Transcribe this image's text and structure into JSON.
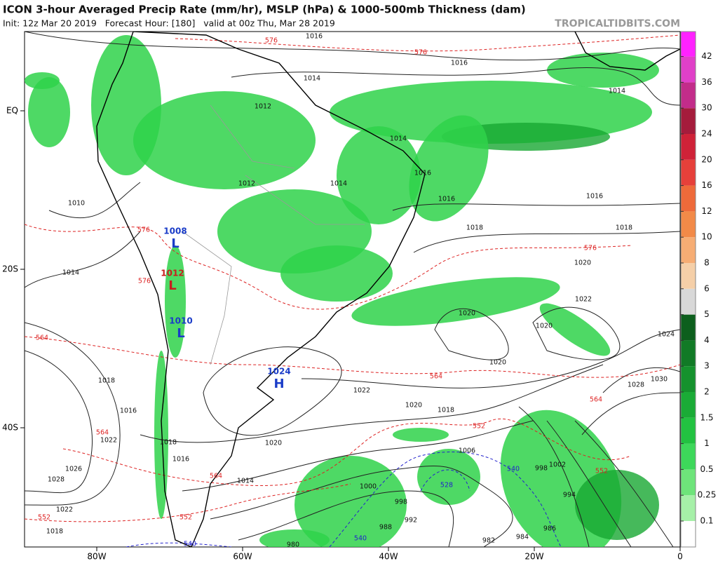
{
  "header": {
    "title": "ICON 3-hour Averaged Precip Rate (mm/hr), MSLP (hPa) & 1000-500mb Thickness (dam)",
    "subtitle": "Init: 12z Mar 20 2019   Forecast Hour: [180]   valid at 00z Thu, Mar 28 2019",
    "site": "TROPICALTIDBITS.COM"
  },
  "colorbar": {
    "labels": [
      0.1,
      0.25,
      0.5,
      1,
      1.5,
      2,
      3,
      4,
      5,
      6,
      8,
      10,
      12,
      16,
      20,
      24,
      30,
      36,
      42
    ],
    "colors": [
      "#ffffff",
      "#a6f0a8",
      "#6ee47a",
      "#3dd85a",
      "#22c241",
      "#1aab36",
      "#15922d",
      "#117a26",
      "#0d5f1d",
      "#d8d8d8",
      "#f5cfa8",
      "#f6ad74",
      "#f28a48",
      "#ee6a3a",
      "#e6403a",
      "#cf2238",
      "#a51c3c",
      "#c22c8a",
      "#e040c8",
      "#ff22ff"
    ]
  },
  "axes": {
    "lon_labels": [
      "80W",
      "60W",
      "40W",
      "20W",
      0
    ],
    "lat_labels": [
      "EQ",
      "20S",
      "40S"
    ]
  },
  "pressure_centers": [
    {
      "letter": "H",
      "value": 1024
    },
    {
      "letter": "L",
      "value": 1012
    },
    {
      "letter": "L",
      "value": 1010
    },
    {
      "letter": "L",
      "value": 1008
    }
  ],
  "isobar_labels": [
    1016,
    1016,
    1014,
    1014,
    1012,
    1014,
    1016,
    1014,
    1012,
    1010,
    1016,
    1016,
    1018,
    1018,
    1014,
    1020,
    1022,
    1020,
    1020,
    1024,
    1020,
    1022,
    1020,
    1018,
    1018,
    1028,
    1030,
    1016,
    1022,
    1026,
    1028,
    1018,
    1016,
    1014,
    1020,
    1006,
    1002,
    998,
    994,
    1000,
    998,
    992,
    988,
    986,
    984,
    982,
    980,
    1022,
    1018
  ],
  "thickness_labels": [
    576,
    576,
    576,
    576,
    576,
    564,
    564,
    564,
    564,
    564,
    552,
    552,
    552,
    552,
    540,
    540,
    528,
    540
  ]
}
